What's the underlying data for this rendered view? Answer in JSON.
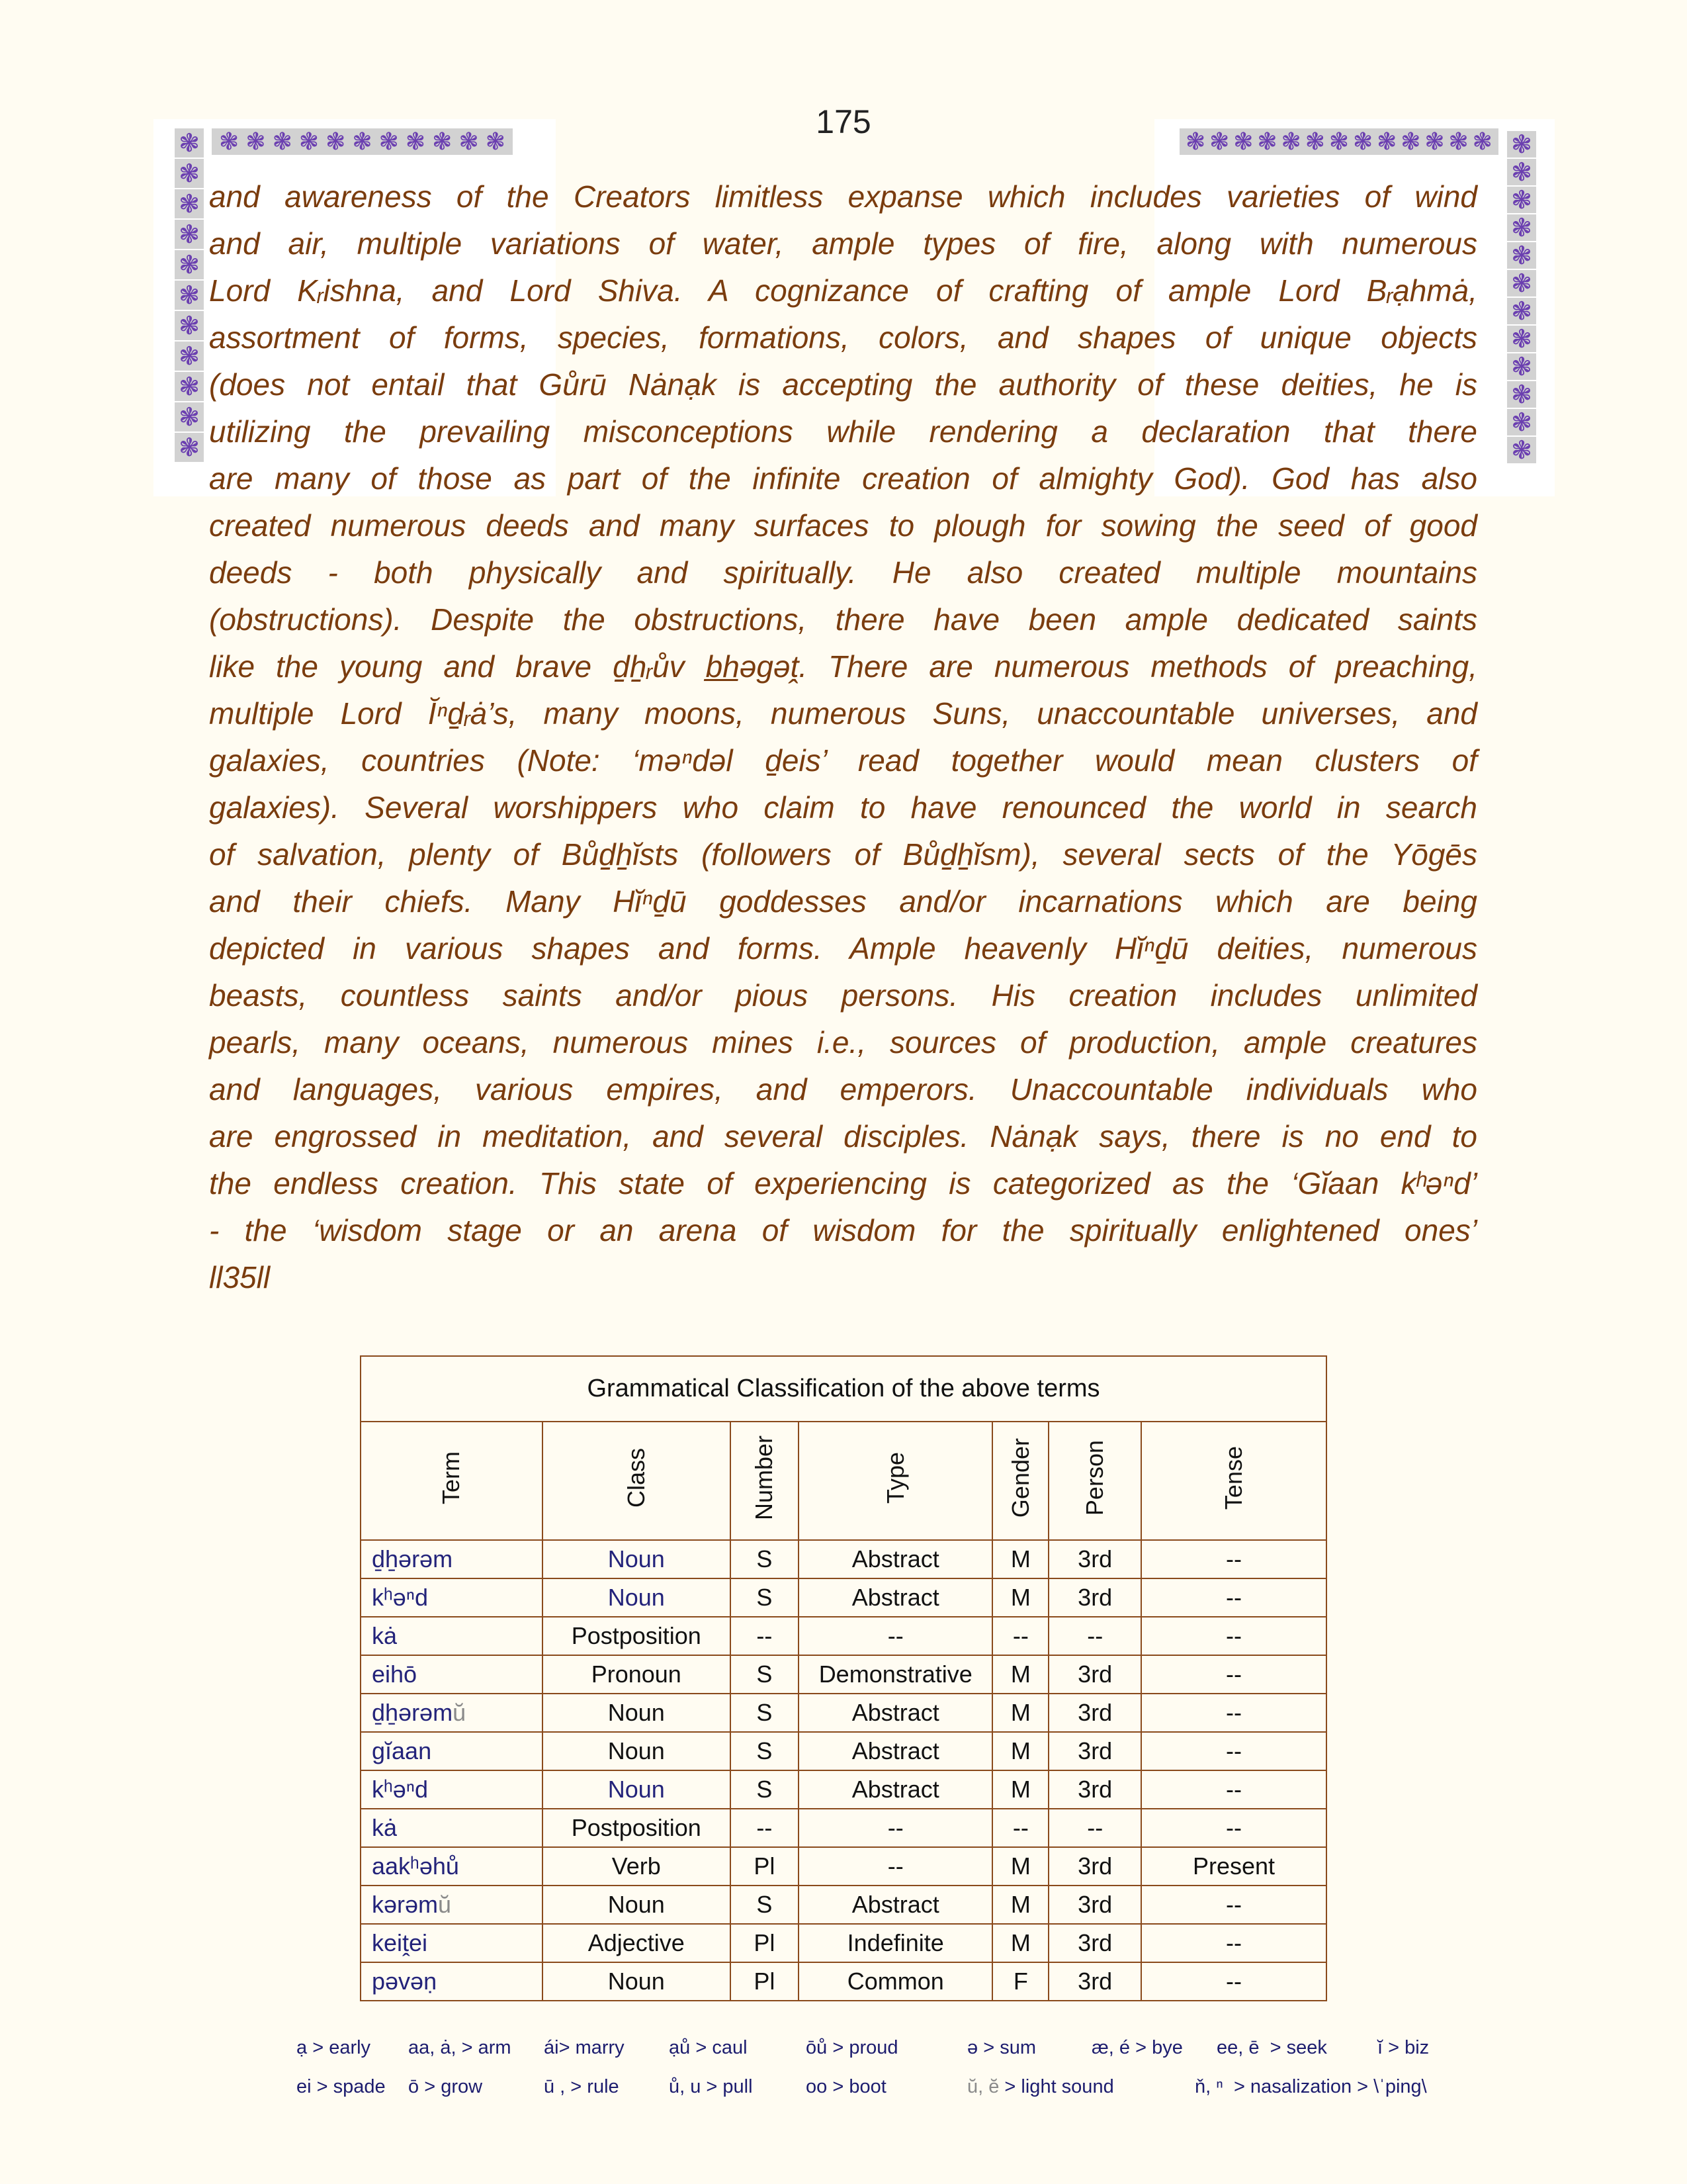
{
  "page_number": "175",
  "decoration": {
    "glyph": "❃",
    "flower_color": "#6b3fb0",
    "tile_color": "#d2d2d2"
  },
  "text_color": "#7a3c0e",
  "paragraph_lines": [
    "and awareness of the Creators limitless expanse which includes varieties of wind",
    "and air, multiple variations of water, ample types of fire, along with numerous",
    "Lord Kᵣishna, and Lord Shiva. A cognizance of crafting of ample Lord Bᵣạhmȧ,",
    "assortment of forms, species, formations, colors, and shapes of unique objects",
    "(does not entail  that Gůrū Nȧnạk is accepting the authority of these deities, he is",
    "utilizing the prevailing misconceptions while rendering a declaration that there",
    "are many of those as part of the infinite creation of almighty God). God has also",
    "created numerous deeds and many surfaces to plough for sowing the seed of good",
    "deeds - both physically and spiritually. He also created multiple mountains",
    "(obstructions). Despite the obstructions, there have been ample dedicated saints",
    "like the young and brave ḏẖᵣův b̲h̲əgəṱ. There are numerous methods of preaching,",
    "multiple Lord Ĭⁿḏᵣȧ’s, many moons, numerous Suns, unaccountable universes, and",
    "galaxies, countries (Note: ‘məⁿdəl ḏeis’ read together would mean clusters of",
    "galaxies). Several worshippers who claim to have renounced the world in search",
    "of salvation, plenty of Bůḏẖĭsts (followers of Bůḏẖĭsm), several sects of the Yōgēs",
    "and their chiefs. Many Hĭⁿḏū goddesses and/or incarnations which are being",
    "depicted in various shapes and forms. Ample heavenly Hĭⁿḏū deities, numerous",
    "beasts, countless saints and/or pious persons. His creation includes unlimited",
    "pearls, many oceans, numerous mines i.e., sources of production, ample creatures",
    "and languages, various empires, and emperors. Unaccountable individuals who",
    "are engrossed in meditation, and several disciples. Nȧnạk says, there is no end to",
    "the endless creation. This state of experiencing is categorized as the ‘Gĭaan kʰəⁿd’",
    "- the ‘wisdom stage or an arena of wisdom for the spiritually enlightened ones’",
    "ll35ll"
  ],
  "table": {
    "title": "Grammatical Classification of the above terms",
    "headers": [
      "Term",
      "Class",
      "Number",
      "Type",
      "Gender",
      "Person",
      "Tense"
    ],
    "rows": [
      {
        "term": "ḏẖərəm",
        "suffix": "",
        "class": "Noun",
        "class_blue": true,
        "number": "S",
        "type": "Abstract",
        "gender": "M",
        "person": "3rd",
        "tense": "--"
      },
      {
        "term": "kʰəⁿd",
        "suffix": "",
        "class": "Noun",
        "class_blue": true,
        "number": "S",
        "type": "Abstract",
        "gender": "M",
        "person": "3rd",
        "tense": "--"
      },
      {
        "term": "kȧ",
        "suffix": "",
        "class": "Postposition",
        "class_blue": false,
        "number": "--",
        "type": "--",
        "gender": "--",
        "person": "--",
        "tense": "--"
      },
      {
        "term": "eihō",
        "suffix": "",
        "class": "Pronoun",
        "class_blue": false,
        "number": "S",
        "type": "Demonstrative",
        "gender": "M",
        "person": "3rd",
        "tense": "--"
      },
      {
        "term": "ḏẖərəm",
        "suffix": "ŭ",
        "class": "Noun",
        "class_blue": false,
        "number": "S",
        "type": "Abstract",
        "gender": "M",
        "person": "3rd",
        "tense": "--"
      },
      {
        "term": "gĭaan",
        "suffix": "",
        "class": "Noun",
        "class_blue": false,
        "number": "S",
        "type": "Abstract",
        "gender": "M",
        "person": "3rd",
        "tense": "--"
      },
      {
        "term": "kʰəⁿd",
        "suffix": "",
        "class": "Noun",
        "class_blue": true,
        "number": "S",
        "type": "Abstract",
        "gender": "M",
        "person": "3rd",
        "tense": "--"
      },
      {
        "term": "kȧ",
        "suffix": "",
        "class": "Postposition",
        "class_blue": false,
        "number": "--",
        "type": "--",
        "gender": "--",
        "person": "--",
        "tense": "--"
      },
      {
        "term": "aakʰəhů",
        "suffix": "",
        "class": "Verb",
        "class_blue": false,
        "number": "Pl",
        "type": "--",
        "gender": "M",
        "person": "3rd",
        "tense": "Present"
      },
      {
        "term": "kərəm",
        "suffix": "ŭ",
        "class": "Noun",
        "class_blue": false,
        "number": "S",
        "type": "Abstract",
        "gender": "M",
        "person": "3rd",
        "tense": "--"
      },
      {
        "term": "keiṱei",
        "suffix": "",
        "class": "Adjective",
        "class_blue": false,
        "number": "Pl",
        "type": "Indefinite",
        "gender": "M",
        "person": "3rd",
        "tense": "--"
      },
      {
        "term": "pəvəṇ",
        "suffix": "",
        "class": "Noun",
        "class_blue": false,
        "number": "Pl",
        "type": "Common",
        "gender": "F",
        "person": "3rd",
        "tense": "--"
      }
    ]
  },
  "legend": [
    [
      {
        "key": "ạ",
        "desc": " > early"
      },
      {
        "key": "aa, ȧ,",
        "desc": " > arm"
      },
      {
        "key": "ái",
        "desc": "> marry"
      },
      {
        "key": "ạů",
        "desc": " > caul"
      },
      {
        "key": "ōů",
        "desc": " > proud"
      },
      {
        "key": "ə",
        "desc": " > sum"
      },
      {
        "key": "æ, é",
        "desc": " > bye"
      },
      {
        "key": "ee, ē",
        "desc": "  > seek"
      },
      {
        "key": "ĭ",
        "desc": " > biz"
      }
    ],
    [
      {
        "key": "ei",
        "desc": " > spade"
      },
      {
        "key": "ō",
        "desc": " > grow"
      },
      {
        "key": "ū ,",
        "desc": " > rule"
      },
      {
        "key": "ů, u",
        "desc": " > pull"
      },
      {
        "key": "oo",
        "desc": " > boot"
      },
      {
        "key": "ŭ, ĕ",
        "desc": " > light sound",
        "muted": true
      },
      {
        "key": "ň, ⁿ",
        "desc": "  > nasalization > \\ˈping\\"
      }
    ]
  ]
}
